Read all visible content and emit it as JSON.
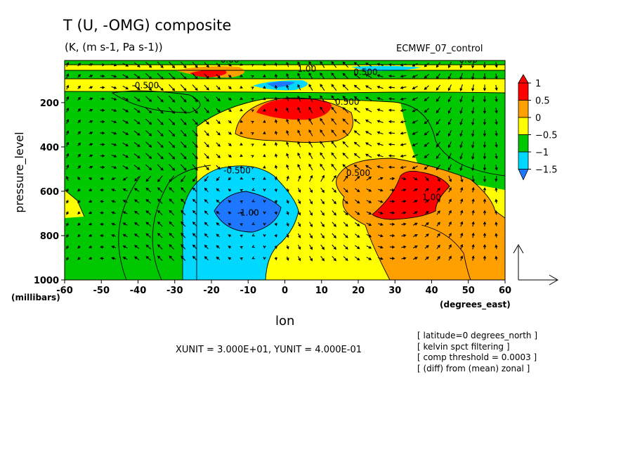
{
  "chart_data": {
    "type": "heatmap",
    "title": "T (U, -OMG) composite",
    "subtitle": "(K, (m s-1, Pa s-1))",
    "dataset": "ECMWF_07_control",
    "xlabel": "lon",
    "xunit": "(degrees_east)",
    "ylabel": "pressure_level",
    "yunit": "(millibars)",
    "xlim": [
      -60,
      60
    ],
    "ylim": [
      1000,
      10
    ],
    "x_ticks": [
      -60,
      -50,
      -40,
      -30,
      -20,
      -10,
      0,
      10,
      20,
      30,
      40,
      50,
      60
    ],
    "y_ticks": [
      200,
      400,
      600,
      800,
      1000
    ],
    "colorbar": {
      "levels": [
        -1.5,
        -1,
        -0.5,
        0,
        0.5,
        1
      ],
      "labels": [
        "1",
        "0.5",
        "0",
        "−0.5",
        "−1",
        "−1.5"
      ],
      "colors": [
        "#1e78ff",
        "#00d8ff",
        "#00c800",
        "#ffff00",
        "#ffa000",
        "#ff0000"
      ]
    },
    "contour_labels": [
      {
        "text": "-0.500",
        "x": -38,
        "y": 135
      },
      {
        "text": "-0.500",
        "x": -13,
        "y": 520
      },
      {
        "text": "-1.00",
        "x": -10,
        "y": 710
      },
      {
        "text": "0.500",
        "x": 17,
        "y": 210
      },
      {
        "text": "0.500",
        "x": 20,
        "y": 530
      },
      {
        "text": "1.00",
        "x": 40,
        "y": 640
      },
      {
        "text": "0.00",
        "x": -15,
        "y": 20
      },
      {
        "text": "0.00",
        "x": 50,
        "y": 20
      },
      {
        "text": "1.00",
        "x": 6,
        "y": 60
      },
      {
        "text": "0.500",
        "x": 22,
        "y": 75
      }
    ],
    "vector_scale": "XUNIT = 3.000E+01, YUNIT = 4.000E-01",
    "notes": [
      "[ latitude=0 degrees_north ]",
      "[ kelvin spct filtering ]",
      "[ comp threshold = 0.0003 ]",
      "[ (diff) from (mean) zonal ]"
    ]
  }
}
